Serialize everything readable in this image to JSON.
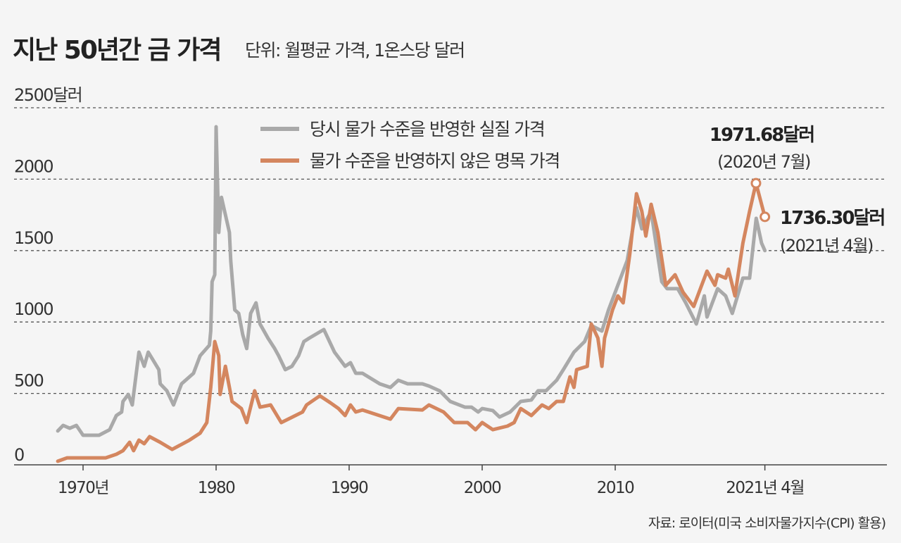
{
  "chart_data": {
    "type": "line",
    "title": "지난 50년간 금 가격",
    "subtitle": "단위: 월평균 가격, 1온스당 달러",
    "ylim": [
      0,
      2500
    ],
    "y_ticks": [
      {
        "value": 0,
        "label": "0"
      },
      {
        "value": 500,
        "label": "500"
      },
      {
        "value": 1000,
        "label": "1000"
      },
      {
        "value": 1500,
        "label": "1500"
      },
      {
        "value": 2000,
        "label": "2000"
      },
      {
        "value": 2500,
        "label": "2500달러"
      }
    ],
    "x_ticks": [
      {
        "value": 1970,
        "label": "1970년"
      },
      {
        "value": 1980,
        "label": "1980"
      },
      {
        "value": 1990,
        "label": "1990"
      },
      {
        "value": 2000,
        "label": "2000"
      },
      {
        "value": 2010,
        "label": "2010"
      },
      {
        "value": 2021.25,
        "label": "2021년 4월"
      }
    ],
    "grid": "horizontal dashed",
    "legend_position": "top-center",
    "series": [
      {
        "name": "당시 물가 수준을 반영한 실질 가격",
        "color": "#a9a9a9",
        "x": [
          1968.1,
          1968.5,
          1969.0,
          1969.5,
          1970,
          1971.2,
          1972,
          1972.5,
          1972.9,
          1973,
          1973.4,
          1973.7,
          1974.2,
          1974.6,
          1974.9,
          1975.7,
          1975.8,
          1976.3,
          1976.8,
          1977.4,
          1978.3,
          1978.8,
          1979.5,
          1979.6,
          1979.7,
          1979.9,
          1980.0,
          1980.2,
          1980.4,
          1981,
          1981.1,
          1981.4,
          1981.7,
          1982.0,
          1982.3,
          1982.6,
          1983,
          1983.3,
          1983.9,
          1984.4,
          1984.7,
          1985.2,
          1985.7,
          1986.2,
          1986.6,
          1987,
          1988.1,
          1988.9,
          1989.7,
          1990.1,
          1990.5,
          1991,
          1992.3,
          1993.1,
          1993.7,
          1994.4,
          1995.5,
          1996,
          1996.8,
          1997.6,
          1998.7,
          1999.2,
          1999.7,
          2000,
          2000.8,
          2001.3,
          2002.1,
          2002.9,
          2003.7,
          2004.2,
          2004.8,
          2005.6,
          2006.1,
          2006.9,
          2007.7,
          2008.2,
          2009.0,
          2009.5,
          2010.1,
          2010.9,
          2011.6,
          2012,
          2012.7,
          2013.5,
          2013.9,
          2014.7,
          2015.3,
          2016.1,
          2016.7,
          2016.9,
          2017.7,
          2018.3,
          2018.8,
          2019.6,
          2020.1,
          2020.6,
          2021.0,
          2021.25
        ],
        "values": [
          237,
          276,
          256,
          276,
          207,
          207,
          246,
          345,
          370,
          444,
          493,
          419,
          789,
          690,
          789,
          666,
          567,
          518,
          419,
          567,
          641,
          764,
          838,
          937,
          1282,
          1331,
          2367,
          1627,
          1873,
          1627,
          1430,
          1085,
          1060,
          912,
          814,
          1060,
          1134,
          986,
          887,
          814,
          764,
          666,
          690,
          764,
          863,
          887,
          947,
          789,
          690,
          715,
          641,
          641,
          567,
          542,
          592,
          567,
          567,
          552,
          518,
          444,
          404,
          404,
          370,
          394,
          380,
          335,
          370,
          444,
          454,
          518,
          518,
          592,
          666,
          789,
          863,
          976,
          937,
          1085,
          1233,
          1430,
          1800,
          1652,
          1775,
          1282,
          1233,
          1233,
          1134,
          986,
          1183,
          1035,
          1233,
          1183,
          1060,
          1307,
          1307,
          1726,
          1553,
          1500
        ]
      },
      {
        "name": "물가 수준을 반영하지 않은 명목 가격",
        "color": "#d4865f",
        "x": [
          1968.1,
          1968.8,
          1971.7,
          1972.5,
          1973,
          1973.5,
          1973.8,
          1974.2,
          1974.6,
          1975,
          1975.8,
          1976.7,
          1978,
          1978.8,
          1979.3,
          1979.6,
          1979.9,
          1980.2,
          1980.3,
          1980.7,
          1981.2,
          1981.9,
          1982.3,
          1982.9,
          1983.3,
          1984.1,
          1984.9,
          1986.5,
          1986.8,
          1987.8,
          1988.6,
          1989.2,
          1989.7,
          1990.1,
          1990.5,
          1991,
          1993.1,
          1993.7,
          1995.5,
          1996,
          1997.1,
          1997.9,
          1998.9,
          1999.5,
          2000,
          2000.8,
          2001.9,
          2002.4,
          2002.9,
          2003.7,
          2004.5,
          2005,
          2005.6,
          2006.1,
          2006.6,
          2006.9,
          2007.1,
          2007.9,
          2008.2,
          2008.7,
          2009.0,
          2009.2,
          2009.8,
          2010.2,
          2010.6,
          2011.1,
          2011.6,
          2012.0,
          2012.3,
          2012.7,
          2013.2,
          2013.8,
          2014.5,
          2015.1,
          2015.9,
          2016.4,
          2016.9,
          2017.5,
          2017.7,
          2018.3,
          2018.5,
          2019.0,
          2019.6,
          2020.1,
          2020.58,
          2021.25
        ],
        "values": [
          25,
          49,
          49,
          74,
          99,
          158,
          99,
          173,
          148,
          197,
          158,
          108,
          173,
          222,
          296,
          542,
          863,
          764,
          493,
          690,
          444,
          394,
          296,
          518,
          404,
          419,
          296,
          370,
          419,
          483,
          434,
          394,
          345,
          419,
          370,
          384,
          320,
          394,
          384,
          419,
          370,
          296,
          296,
          246,
          296,
          246,
          271,
          296,
          394,
          345,
          419,
          394,
          444,
          444,
          616,
          542,
          666,
          690,
          986,
          887,
          690,
          887,
          1085,
          1183,
          1134,
          1479,
          1898,
          1775,
          1602,
          1824,
          1627,
          1257,
          1331,
          1208,
          1109,
          1233,
          1356,
          1257,
          1331,
          1307,
          1370,
          1183,
          1553,
          1775,
          1971.68,
          1736.3
        ]
      }
    ],
    "annotations": [
      {
        "x": 2020.58,
        "value": 1971.68,
        "label": "1971.68달러",
        "sublabel": "(2020년 7월)"
      },
      {
        "x": 2021.25,
        "value": 1736.3,
        "label": "1736.30달러",
        "sublabel": "(2021년 4월)"
      }
    ],
    "source": "자료: 로이터(미국 소비자물가지수(CPI) 활용)"
  }
}
